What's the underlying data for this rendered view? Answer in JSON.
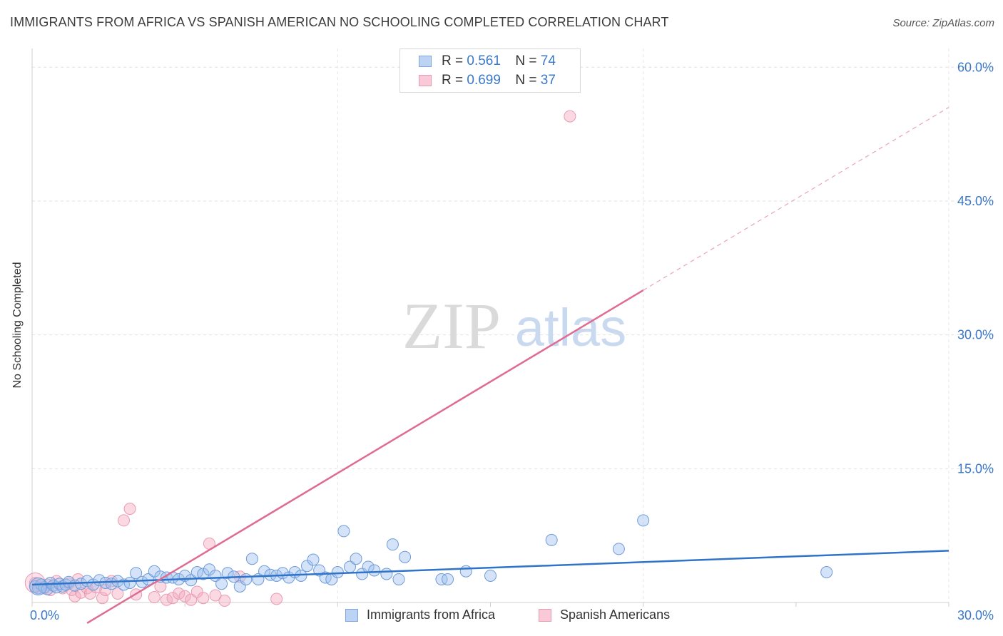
{
  "title": "IMMIGRANTS FROM AFRICA VS SPANISH AMERICAN NO SCHOOLING COMPLETED CORRELATION CHART",
  "source": "Source: ZipAtlas.com",
  "watermark": {
    "zip": "ZIP",
    "atlas": "atlas"
  },
  "legend": {
    "series1": {
      "r_label": "R =",
      "r_value": "0.561",
      "n_label": "N =",
      "n_value": "74"
    },
    "series2": {
      "r_label": "R =",
      "r_value": "0.699",
      "n_label": "N =",
      "n_value": "37"
    }
  },
  "chart_data": {
    "type": "scatter",
    "title": "IMMIGRANTS FROM AFRICA VS SPANISH AMERICAN NO SCHOOLING COMPLETED CORRELATION CHART",
    "xlabel": "",
    "ylabel": "No Schooling Completed",
    "xlim": [
      0,
      30
    ],
    "ylim": [
      0,
      60
    ],
    "x_tick_labels": [
      "0.0%",
      "30.0%"
    ],
    "y_tick_labels": [
      "15.0%",
      "30.0%",
      "45.0%",
      "60.0%"
    ],
    "y_ticks": [
      15,
      30,
      45,
      60
    ],
    "grid": true,
    "legend_position": "top-center",
    "colors": {
      "series1": "#5b8fd6",
      "series2": "#e77fa0",
      "trend1": "#2f74c9",
      "trend2": "#e06b92",
      "tick": "#3a78c9"
    },
    "series": [
      {
        "name": "Immigrants from Africa",
        "trend": {
          "x0": 0,
          "y0": 2.0,
          "x1": 30,
          "y1": 5.8,
          "dashed_to": null
        },
        "points": [
          [
            0.1,
            1.8
          ],
          [
            0.2,
            1.6
          ],
          [
            0.3,
            2.0
          ],
          [
            0.4,
            1.7
          ],
          [
            0.5,
            1.5
          ],
          [
            0.6,
            2.2
          ],
          [
            0.7,
            1.9
          ],
          [
            0.8,
            1.7
          ],
          [
            0.9,
            2.1
          ],
          [
            1.0,
            1.8
          ],
          [
            1.1,
            2.0
          ],
          [
            1.2,
            2.3
          ],
          [
            1.4,
            1.9
          ],
          [
            1.6,
            2.1
          ],
          [
            1.8,
            2.4
          ],
          [
            2.0,
            2.0
          ],
          [
            2.2,
            2.5
          ],
          [
            2.4,
            2.2
          ],
          [
            2.6,
            2.1
          ],
          [
            2.8,
            2.4
          ],
          [
            3.0,
            2.0
          ],
          [
            3.2,
            2.2
          ],
          [
            3.4,
            3.3
          ],
          [
            3.6,
            2.3
          ],
          [
            3.8,
            2.6
          ],
          [
            4.0,
            3.5
          ],
          [
            4.2,
            2.9
          ],
          [
            4.4,
            2.8
          ],
          [
            4.6,
            2.8
          ],
          [
            4.8,
            2.6
          ],
          [
            5.0,
            3.0
          ],
          [
            5.2,
            2.5
          ],
          [
            5.4,
            3.4
          ],
          [
            5.6,
            3.2
          ],
          [
            5.8,
            3.7
          ],
          [
            6.0,
            3.0
          ],
          [
            6.2,
            2.1
          ],
          [
            6.4,
            3.3
          ],
          [
            6.6,
            2.9
          ],
          [
            6.8,
            1.8
          ],
          [
            7.0,
            2.6
          ],
          [
            7.2,
            4.9
          ],
          [
            7.4,
            2.6
          ],
          [
            7.6,
            3.5
          ],
          [
            7.8,
            3.1
          ],
          [
            8.0,
            3.0
          ],
          [
            8.2,
            3.3
          ],
          [
            8.4,
            2.8
          ],
          [
            8.6,
            3.4
          ],
          [
            8.8,
            3.0
          ],
          [
            9.0,
            4.1
          ],
          [
            9.2,
            4.8
          ],
          [
            9.4,
            3.6
          ],
          [
            9.6,
            2.8
          ],
          [
            9.8,
            2.6
          ],
          [
            10.0,
            3.4
          ],
          [
            10.2,
            8.0
          ],
          [
            10.4,
            4.0
          ],
          [
            10.6,
            4.9
          ],
          [
            10.8,
            3.2
          ],
          [
            11.0,
            4.0
          ],
          [
            11.2,
            3.6
          ],
          [
            11.6,
            3.2
          ],
          [
            11.8,
            6.5
          ],
          [
            12.0,
            2.6
          ],
          [
            12.2,
            5.1
          ],
          [
            13.4,
            2.6
          ],
          [
            13.6,
            2.6
          ],
          [
            14.2,
            3.5
          ],
          [
            15.0,
            3.0
          ],
          [
            17.0,
            7.0
          ],
          [
            19.2,
            6.0
          ],
          [
            20.0,
            9.2
          ],
          [
            26.0,
            3.4
          ]
        ]
      },
      {
        "name": "Spanish Americans",
        "trend": {
          "x0": 0,
          "y0": -6.0,
          "x1": 20,
          "y1": 35.0,
          "dashed_to": {
            "x": 30,
            "y": 55.5
          }
        },
        "points": [
          [
            0.1,
            2.2
          ],
          [
            0.2,
            1.9
          ],
          [
            0.4,
            1.6
          ],
          [
            0.5,
            2.0
          ],
          [
            0.6,
            1.4
          ],
          [
            0.8,
            2.4
          ],
          [
            1.0,
            1.6
          ],
          [
            1.2,
            2.1
          ],
          [
            1.3,
            1.4
          ],
          [
            1.4,
            0.7
          ],
          [
            1.5,
            2.6
          ],
          [
            1.6,
            1.1
          ],
          [
            1.8,
            1.6
          ],
          [
            1.9,
            1.0
          ],
          [
            2.1,
            1.7
          ],
          [
            2.3,
            0.5
          ],
          [
            2.4,
            1.4
          ],
          [
            2.6,
            2.4
          ],
          [
            2.8,
            1.0
          ],
          [
            3.0,
            9.2
          ],
          [
            3.2,
            10.5
          ],
          [
            3.4,
            0.9
          ],
          [
            4.0,
            0.6
          ],
          [
            4.2,
            1.8
          ],
          [
            4.4,
            0.3
          ],
          [
            4.6,
            0.5
          ],
          [
            4.8,
            1.0
          ],
          [
            5.0,
            0.7
          ],
          [
            5.2,
            0.3
          ],
          [
            5.4,
            1.2
          ],
          [
            5.6,
            0.5
          ],
          [
            5.8,
            6.6
          ],
          [
            6.0,
            0.8
          ],
          [
            6.3,
            0.2
          ],
          [
            6.8,
            2.9
          ],
          [
            8.0,
            0.4
          ],
          [
            17.6,
            54.5
          ]
        ]
      }
    ]
  },
  "bottom_legend": {
    "series1": "Immigrants from Africa",
    "series2": "Spanish Americans"
  }
}
